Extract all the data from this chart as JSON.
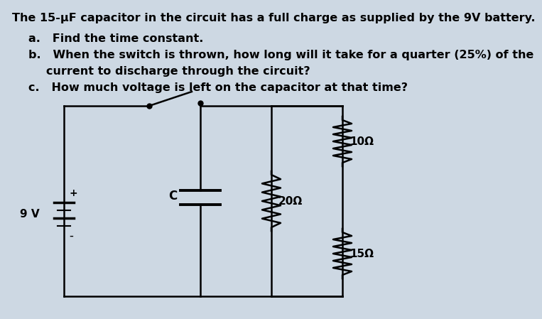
{
  "background_color": "#cdd8e3",
  "title_line": "The 15-μF capacitor in the circuit has a full charge as supplied by the 9V battery.",
  "line_a": "a.   Find the time constant.",
  "line_b1": "b.   When the switch is thrown, how long will it take for a quarter (25%) of the",
  "line_b2": "       current to discharge through the circuit?",
  "line_c": "c.   How much voltage is left on the capacitor at that time?",
  "battery_label": "9 V",
  "cap_label": "C",
  "r1_label": "10Ω",
  "r2_label": "20Ω",
  "r3_label": "15Ω",
  "font_size_text": 11.5,
  "font_size_circuit": 11
}
